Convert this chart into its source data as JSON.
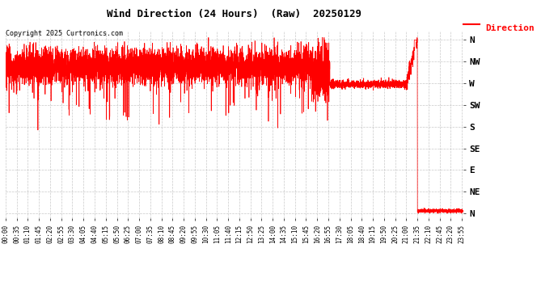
{
  "title": "Wind Direction (24 Hours)  (Raw)  20250129",
  "copyright": "Copyright 2025 Curtronics.com",
  "legend_label": "Direction",
  "line_color": "red",
  "background_color": "white",
  "grid_color": "#bbbbbb",
  "ytick_labels": [
    "N",
    "NW",
    "W",
    "SW",
    "S",
    "SE",
    "E",
    "NE",
    "N"
  ],
  "ytick_values": [
    360,
    315,
    270,
    225,
    180,
    135,
    90,
    45,
    0
  ],
  "ylim": [
    -10,
    380
  ],
  "total_minutes": 1440,
  "seed": 42,
  "figsize": [
    6.9,
    3.75
  ],
  "dpi": 100
}
